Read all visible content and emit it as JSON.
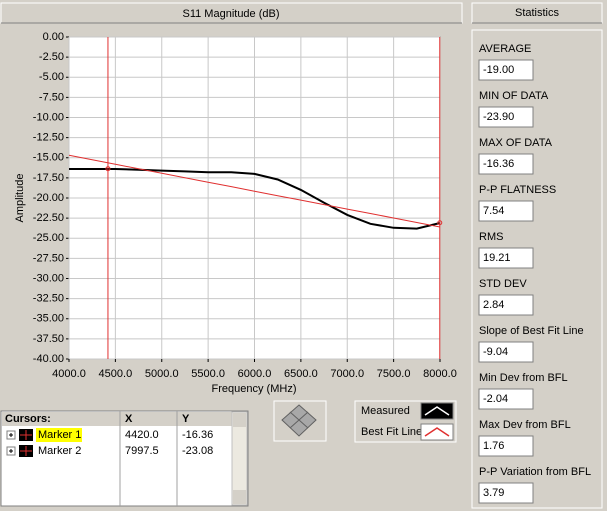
{
  "chart_data": {
    "type": "line",
    "title": "S11 Magnitude (dB)",
    "x_label": "Frequency (MHz)",
    "y_label": "Amplitude",
    "x": [
      4000,
      4250,
      4500,
      4750,
      5000,
      5250,
      5500,
      5750,
      6000,
      6250,
      6500,
      6750,
      7000,
      7250,
      7500,
      7750,
      8000
    ],
    "series": [
      {
        "name": "Measured",
        "color": "#000000",
        "values": [
          -16.4,
          -16.4,
          -16.4,
          -16.5,
          -16.6,
          -16.7,
          -16.8,
          -16.8,
          -17.0,
          -17.7,
          -19.0,
          -20.6,
          -22.1,
          -23.2,
          -23.7,
          -23.8,
          -23.1
        ]
      },
      {
        "name": "Best Fit Line",
        "color": "#e03030",
        "values": [
          -14.7,
          -15.26,
          -15.81,
          -16.37,
          -16.93,
          -17.48,
          -18.04,
          -18.59,
          -19.15,
          -19.71,
          -20.26,
          -20.82,
          -21.38,
          -21.93,
          -22.49,
          -23.04,
          -23.6
        ]
      }
    ],
    "xlim": [
      4000,
      8000
    ],
    "xticks": [
      {
        "value": 4000,
        "label": "4000.0"
      },
      {
        "value": 4500,
        "label": "4500.0"
      },
      {
        "value": 5000,
        "label": "5000.0"
      },
      {
        "value": 5500,
        "label": "5500.0"
      },
      {
        "value": 6000,
        "label": "6000.0"
      },
      {
        "value": 6500,
        "label": "6500.0"
      },
      {
        "value": 7000,
        "label": "7000.0"
      },
      {
        "value": 7500,
        "label": "7500.0"
      },
      {
        "value": 8000,
        "label": "8000.0"
      }
    ],
    "ylim": [
      -40,
      0
    ],
    "yticks": [
      {
        "value": 0,
        "label": "0.00"
      },
      {
        "value": -2.5,
        "label": "-2.50"
      },
      {
        "value": -5,
        "label": "-5.00"
      },
      {
        "value": -7.5,
        "label": "-7.50"
      },
      {
        "value": -10,
        "label": "-10.00"
      },
      {
        "value": -12.5,
        "label": "-12.50"
      },
      {
        "value": -15,
        "label": "-15.00"
      },
      {
        "value": -17.5,
        "label": "-17.50"
      },
      {
        "value": -20,
        "label": "-20.00"
      },
      {
        "value": -22.5,
        "label": "-22.50"
      },
      {
        "value": -25,
        "label": "-25.00"
      },
      {
        "value": -27.5,
        "label": "-27.50"
      },
      {
        "value": -30,
        "label": "-30.00"
      },
      {
        "value": -32.5,
        "label": "-32.50"
      },
      {
        "value": -35,
        "label": "-35.00"
      },
      {
        "value": -37.5,
        "label": "-37.50"
      },
      {
        "value": -40,
        "label": "-40.00"
      }
    ],
    "grid": true,
    "cursor_color": "#e03030",
    "cursors": {
      "header": [
        "Cursors:",
        "X",
        "Y"
      ],
      "rows": [
        {
          "name": "Marker 1",
          "x": {
            "value": 4420,
            "label": "4420.0"
          },
          "y": -16.36
        },
        {
          "name": "Marker 2",
          "x": {
            "value": 7997.5,
            "label": "7997.5"
          },
          "y": -23.08
        }
      ]
    }
  },
  "statistics": {
    "title": "Statistics",
    "items": [
      {
        "label": "AVERAGE",
        "value": "-19.00"
      },
      {
        "label": "MIN OF DATA",
        "value": "-23.90"
      },
      {
        "label": "MAX OF DATA",
        "value": "-16.36"
      },
      {
        "label": "P-P FLATNESS",
        "value": "7.54"
      },
      {
        "label": "RMS",
        "value": "19.21"
      },
      {
        "label": "STD DEV",
        "value": "2.84"
      },
      {
        "label": "Slope of Best Fit Line",
        "value": "-9.04"
      },
      {
        "label": "Min Dev from BFL",
        "value": "-2.04"
      },
      {
        "label": "Max Dev from BFL",
        "value": "1.76"
      },
      {
        "label": "P-P Variation from BFL",
        "value": "3.79"
      }
    ]
  }
}
